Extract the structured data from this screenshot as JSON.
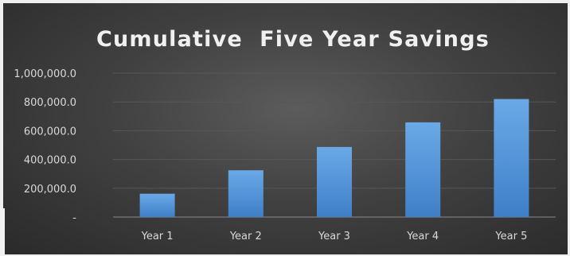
{
  "chart_data": {
    "type": "bar",
    "title": "Cumulative  Five Year Savings",
    "xlabel": "",
    "ylabel": "",
    "categories": [
      "Year 1",
      "Year 2",
      "Year 3",
      "Year 4",
      "Year 5"
    ],
    "values": [
      162000,
      325000,
      487000,
      658000,
      820000
    ],
    "ylim": [
      0,
      1000000
    ],
    "y_ticks": [
      {
        "value": 0,
        "label": "-"
      },
      {
        "value": 200000,
        "label": "200,000.0"
      },
      {
        "value": 400000,
        "label": "400,000.0"
      },
      {
        "value": 600000,
        "label": "600,000.0"
      },
      {
        "value": 800000,
        "label": "800,000.0"
      },
      {
        "value": 1000000,
        "label": "1,000,000.0"
      }
    ],
    "grid": true,
    "legend": "none",
    "colors": {
      "bar_top": "#6aa9e6",
      "bar_bottom": "#3f7fc8",
      "background": "#3c3c3c"
    }
  }
}
